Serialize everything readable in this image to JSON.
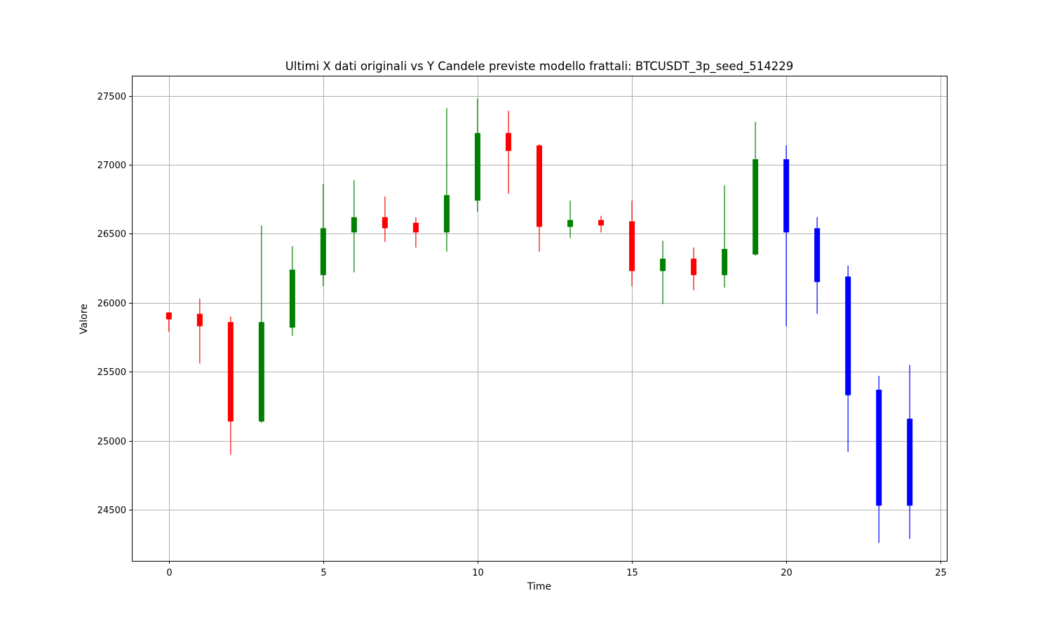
{
  "chart_data": {
    "type": "candlestick",
    "title": "Ultimi X dati originali vs Y Candele previste modello frattali: BTCUSDT_3p_seed_514229",
    "xlabel": "Time",
    "ylabel": "Valore",
    "xlim": [
      -1.2,
      25.2
    ],
    "ylim": [
      24130,
      27645
    ],
    "xticks": [
      0,
      5,
      10,
      15,
      20,
      25
    ],
    "yticks": [
      24500,
      25000,
      25500,
      26000,
      26500,
      27000,
      27500
    ],
    "grid": true,
    "colors": {
      "up": "#008000",
      "down": "#ff0000",
      "predicted": "#0000ff"
    },
    "candles": [
      {
        "t": 0,
        "open": 25930,
        "high": 25930,
        "low": 25790,
        "close": 25880,
        "kind": "original"
      },
      {
        "t": 1,
        "open": 25920,
        "high": 26030,
        "low": 25560,
        "close": 25830,
        "kind": "original"
      },
      {
        "t": 2,
        "open": 25860,
        "high": 25900,
        "low": 24900,
        "close": 25140,
        "kind": "original"
      },
      {
        "t": 3,
        "open": 25140,
        "high": 26560,
        "low": 25130,
        "close": 25860,
        "kind": "original"
      },
      {
        "t": 4,
        "open": 25820,
        "high": 26410,
        "low": 25760,
        "close": 26240,
        "kind": "original"
      },
      {
        "t": 5,
        "open": 26200,
        "high": 26860,
        "low": 26120,
        "close": 26540,
        "kind": "original"
      },
      {
        "t": 6,
        "open": 26510,
        "high": 26890,
        "low": 26220,
        "close": 26620,
        "kind": "original"
      },
      {
        "t": 7,
        "open": 26620,
        "high": 26770,
        "low": 26440,
        "close": 26540,
        "kind": "original"
      },
      {
        "t": 8,
        "open": 26580,
        "high": 26620,
        "low": 26400,
        "close": 26510,
        "kind": "original"
      },
      {
        "t": 9,
        "open": 26510,
        "high": 27410,
        "low": 26370,
        "close": 26780,
        "kind": "original"
      },
      {
        "t": 10,
        "open": 26740,
        "high": 27480,
        "low": 26660,
        "close": 27230,
        "kind": "original"
      },
      {
        "t": 11,
        "open": 27230,
        "high": 27390,
        "low": 26790,
        "close": 27100,
        "kind": "original"
      },
      {
        "t": 12,
        "open": 27140,
        "high": 27150,
        "low": 26370,
        "close": 26550,
        "kind": "original"
      },
      {
        "t": 13,
        "open": 26550,
        "high": 26740,
        "low": 26470,
        "close": 26600,
        "kind": "original"
      },
      {
        "t": 14,
        "open": 26600,
        "high": 26630,
        "low": 26510,
        "close": 26560,
        "kind": "original"
      },
      {
        "t": 15,
        "open": 26590,
        "high": 26740,
        "low": 26120,
        "close": 26230,
        "kind": "original"
      },
      {
        "t": 16,
        "open": 26230,
        "high": 26450,
        "low": 25990,
        "close": 26320,
        "kind": "original"
      },
      {
        "t": 17,
        "open": 26320,
        "high": 26400,
        "low": 26090,
        "close": 26200,
        "kind": "original"
      },
      {
        "t": 18,
        "open": 26200,
        "high": 26850,
        "low": 26110,
        "close": 26390,
        "kind": "original"
      },
      {
        "t": 19,
        "open": 26350,
        "high": 27310,
        "low": 26340,
        "close": 27040,
        "kind": "original"
      },
      {
        "t": 20,
        "open": 27040,
        "high": 27140,
        "low": 25830,
        "close": 26510,
        "kind": "predicted"
      },
      {
        "t": 21,
        "open": 26540,
        "high": 26620,
        "low": 25920,
        "close": 26150,
        "kind": "predicted"
      },
      {
        "t": 22,
        "open": 26190,
        "high": 26270,
        "low": 24920,
        "close": 25330,
        "kind": "predicted"
      },
      {
        "t": 23,
        "open": 25370,
        "high": 25470,
        "low": 24260,
        "close": 24530,
        "kind": "predicted"
      },
      {
        "t": 24,
        "open": 25160,
        "high": 25550,
        "low": 24290,
        "close": 24530,
        "kind": "predicted"
      }
    ]
  }
}
